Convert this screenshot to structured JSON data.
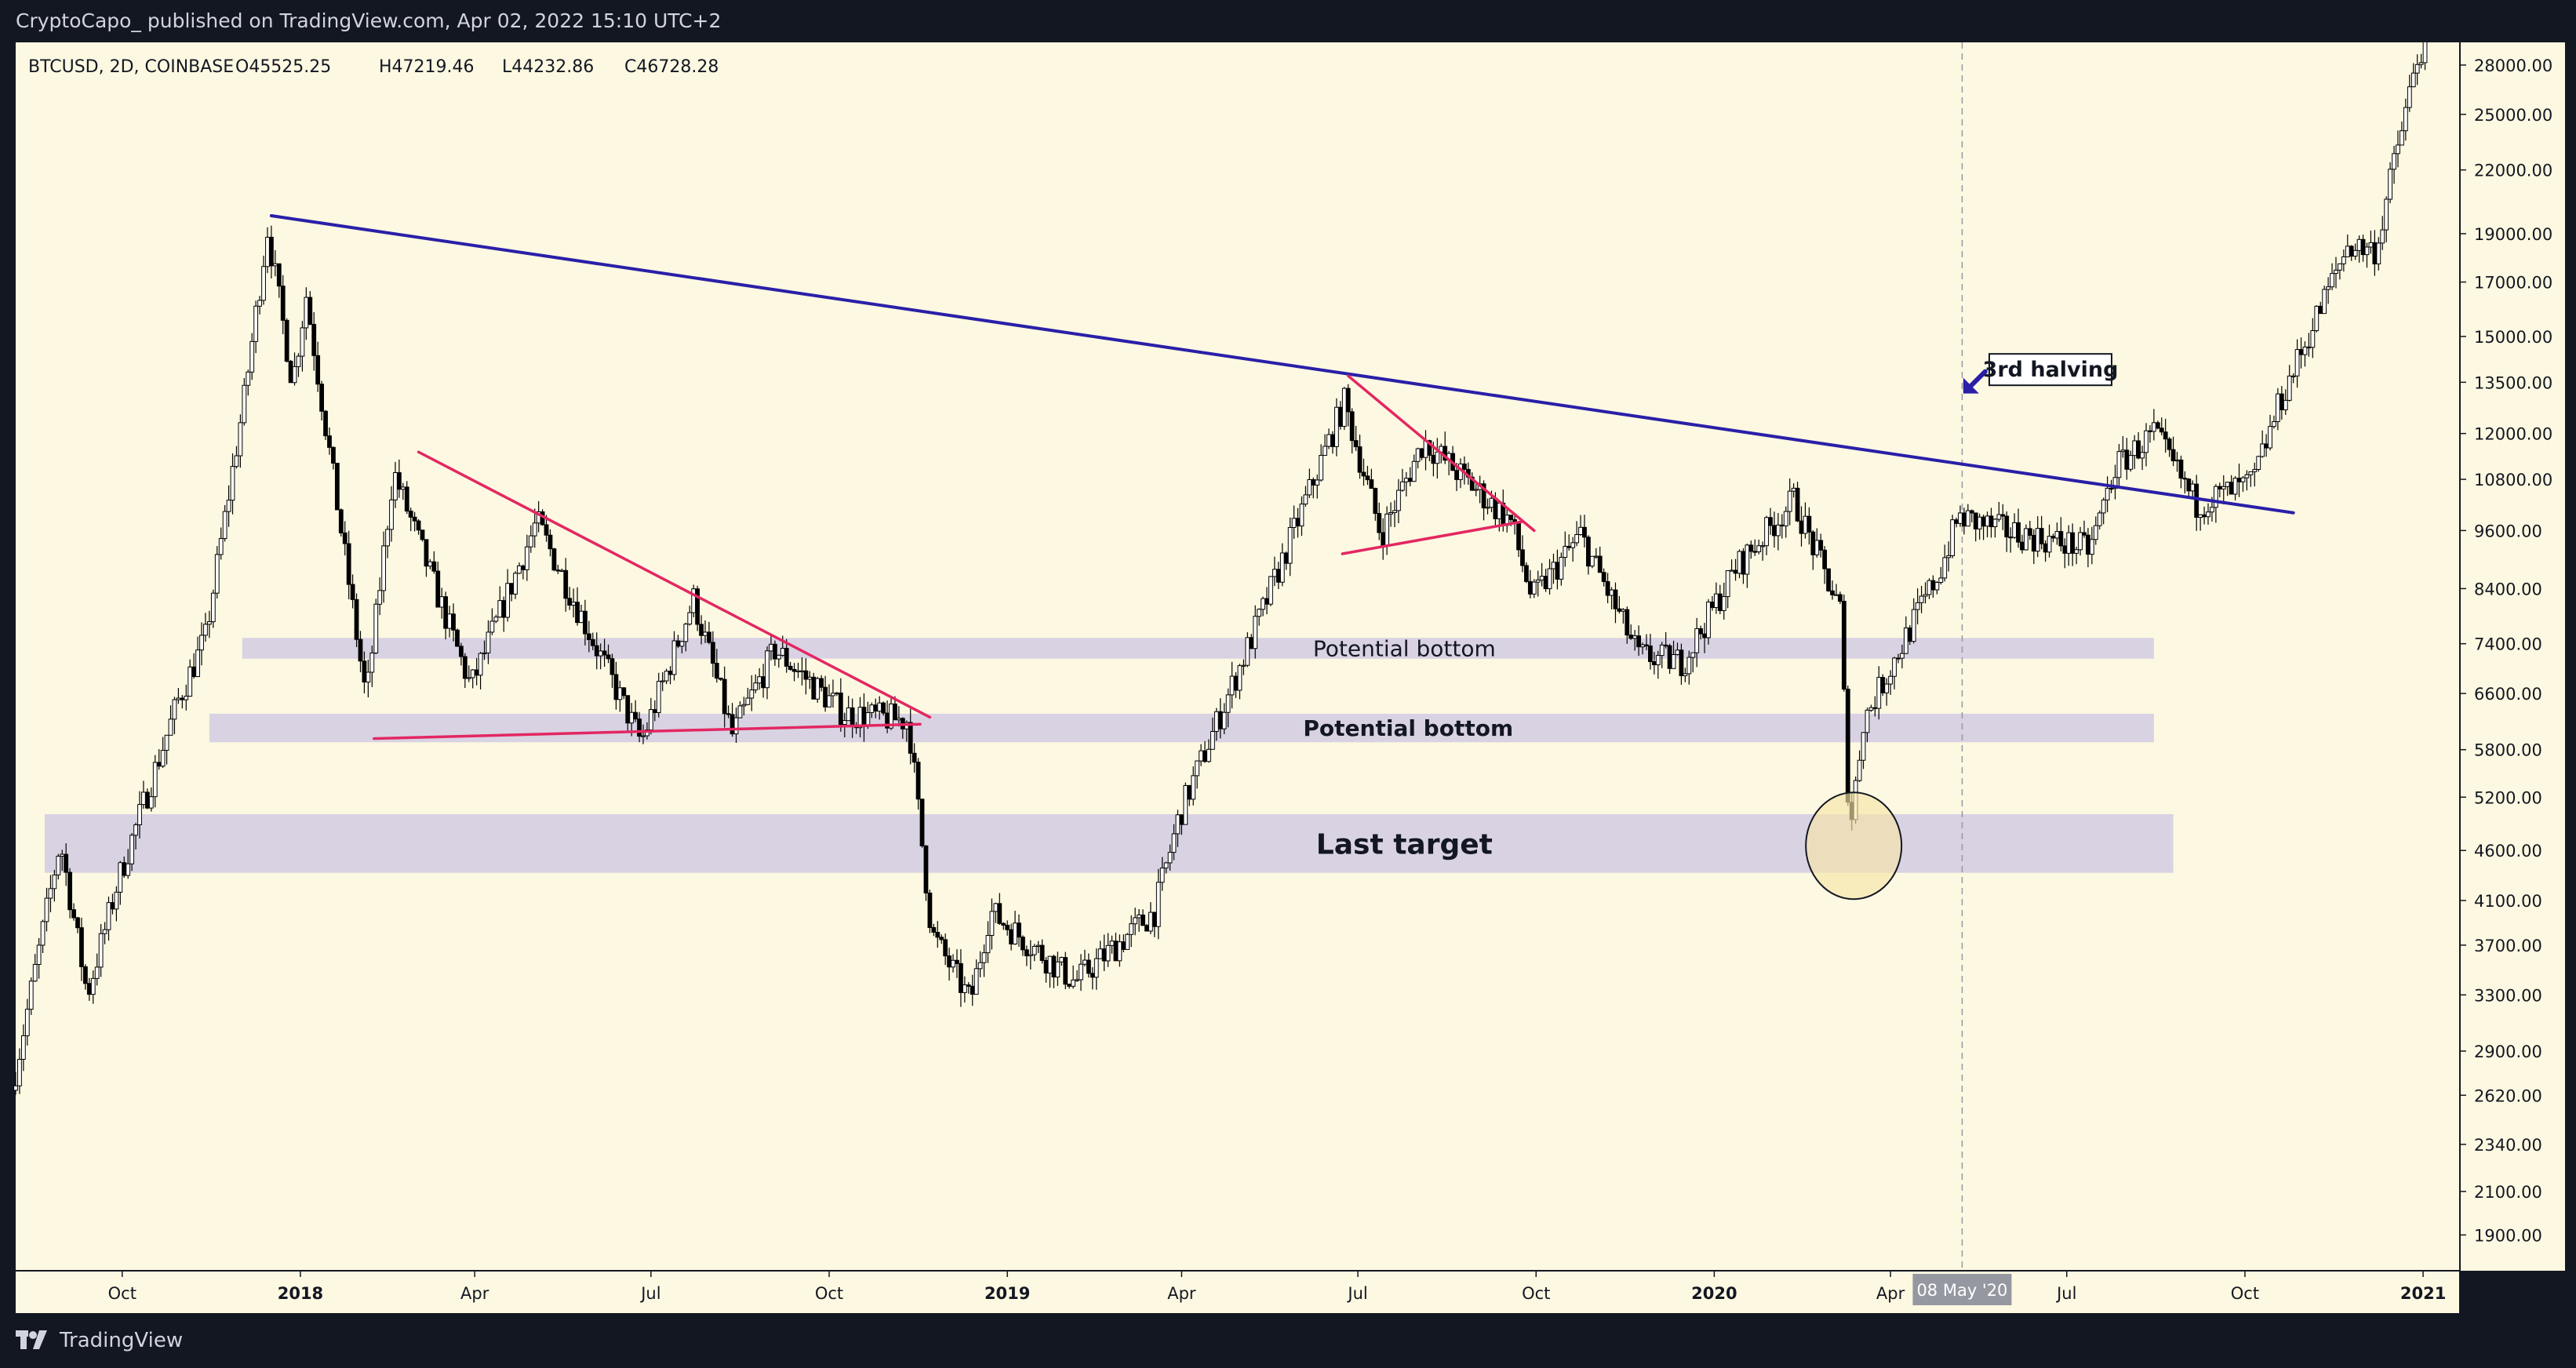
{
  "header": {
    "published_by": "CryptoCapo_ published on TradingView.com, Apr 02, 2022 15:10 UTC+2"
  },
  "footer": {
    "brand": "TradingView"
  },
  "chart_data": {
    "type": "candlestick",
    "symbol_info": "BTCUSD, 2D, COINBASE",
    "ohlc_readout": {
      "open": "O45525.25",
      "high": "H47219.46",
      "low": "L44232.86",
      "close": "C46728.28"
    },
    "y_scale": "log",
    "ylim": [
      1750,
      29500
    ],
    "xlim": [
      "2017-08-07",
      "2021-01-20"
    ],
    "y_ticks": [
      "28000.00",
      "25000.00",
      "22000.00",
      "19000.00",
      "17000.00",
      "15000.00",
      "13500.00",
      "12000.00",
      "10800.00",
      "9600.00",
      "8400.00",
      "7400.00",
      "6600.00",
      "5800.00",
      "5200.00",
      "4600.00",
      "4100.00",
      "3700.00",
      "3300.00",
      "2900.00",
      "2620.00",
      "2340.00",
      "2100.00",
      "1900.00"
    ],
    "x_ticks": [
      {
        "label": "Oct",
        "date": "2017-10-01",
        "bold": false
      },
      {
        "label": "2018",
        "date": "2018-01-01",
        "bold": true
      },
      {
        "label": "Apr",
        "date": "2018-04-01",
        "bold": false
      },
      {
        "label": "Jul",
        "date": "2018-07-01",
        "bold": false
      },
      {
        "label": "Oct",
        "date": "2018-10-01",
        "bold": false
      },
      {
        "label": "2019",
        "date": "2019-01-01",
        "bold": true
      },
      {
        "label": "Apr",
        "date": "2019-04-01",
        "bold": false
      },
      {
        "label": "Jul",
        "date": "2019-07-01",
        "bold": false
      },
      {
        "label": "Oct",
        "date": "2019-10-01",
        "bold": false
      },
      {
        "label": "2020",
        "date": "2020-01-01",
        "bold": true
      },
      {
        "label": "Apr",
        "date": "2020-04-01",
        "bold": false
      },
      {
        "label": "Jul",
        "date": "2020-07-01",
        "bold": false
      },
      {
        "label": "Oct",
        "date": "2020-10-01",
        "bold": false
      },
      {
        "label": "2021",
        "date": "2021-01-01",
        "bold": true
      }
    ],
    "crosshair": {
      "date": "2020-05-08",
      "label": "08 May '20"
    },
    "price_path": [
      [
        "2017-08-07",
        2650
      ],
      [
        "2017-09-01",
        4700
      ],
      [
        "2017-09-15",
        3300
      ],
      [
        "2017-10-01",
        4300
      ],
      [
        "2017-11-01",
        6500
      ],
      [
        "2017-11-15",
        7500
      ],
      [
        "2017-12-05",
        13000
      ],
      [
        "2017-12-17",
        19200
      ],
      [
        "2017-12-30",
        13500
      ],
      [
        "2018-01-06",
        16500
      ],
      [
        "2018-02-06",
        6500
      ],
      [
        "2018-02-20",
        11000
      ],
      [
        "2018-04-01",
        6700
      ],
      [
        "2018-05-05",
        9800
      ],
      [
        "2018-06-28",
        5900
      ],
      [
        "2018-07-25",
        8200
      ],
      [
        "2018-08-14",
        6000
      ],
      [
        "2018-09-05",
        7300
      ],
      [
        "2018-10-11",
        6300
      ],
      [
        "2018-11-13",
        6200
      ],
      [
        "2018-11-25",
        3800
      ],
      [
        "2018-12-15",
        3250
      ],
      [
        "2018-12-25",
        4000
      ],
      [
        "2019-02-07",
        3400
      ],
      [
        "2019-03-20",
        4000
      ],
      [
        "2019-04-02",
        5000
      ],
      [
        "2019-05-15",
        8000
      ],
      [
        "2019-06-26",
        12900
      ],
      [
        "2019-07-15",
        9500
      ],
      [
        "2019-08-06",
        11800
      ],
      [
        "2019-09-20",
        9800
      ],
      [
        "2019-10-01",
        8200
      ],
      [
        "2019-10-26",
        9500
      ],
      [
        "2019-11-25",
        7200
      ],
      [
        "2019-12-18",
        7100
      ],
      [
        "2020-01-14",
        8800
      ],
      [
        "2020-02-13",
        10300
      ],
      [
        "2020-03-08",
        8000
      ],
      [
        "2020-03-13",
        4800
      ],
      [
        "2020-03-20",
        6200
      ],
      [
        "2020-04-29",
        8800
      ],
      [
        "2020-05-08",
        9900
      ],
      [
        "2020-06-01",
        9600
      ],
      [
        "2020-07-15",
        9200
      ],
      [
        "2020-07-28",
        11100
      ],
      [
        "2020-08-17",
        12000
      ],
      [
        "2020-09-08",
        10200
      ],
      [
        "2020-10-07",
        10700
      ],
      [
        "2020-10-21",
        12900
      ],
      [
        "2020-11-25",
        18500
      ],
      [
        "2020-12-10",
        18300
      ],
      [
        "2020-12-16",
        21000
      ],
      [
        "2021-01-01",
        29000
      ]
    ],
    "trendlines": [
      {
        "name": "long-term-descending-resistance",
        "color": "#2a1fa8",
        "points": [
          [
            "2017-12-17",
            19800
          ],
          [
            "2020-10-26",
            10000
          ]
        ]
      },
      {
        "name": "2018-triangle-upper-trendline",
        "color": "#e32762",
        "points": [
          [
            "2018-03-03",
            11500
          ],
          [
            "2018-11-22",
            6250
          ]
        ]
      },
      {
        "name": "2018-triangle-lower-trendline",
        "color": "#e32762",
        "points": [
          [
            "2018-02-08",
            5950
          ],
          [
            "2018-11-17",
            6150
          ]
        ]
      },
      {
        "name": "2019-triangle-upper-trendline",
        "color": "#e32762",
        "points": [
          [
            "2019-06-26",
            13700
          ],
          [
            "2019-09-30",
            9600
          ]
        ]
      },
      {
        "name": "2019-triangle-lower-trendline",
        "color": "#e32762",
        "points": [
          [
            "2019-06-23",
            9100
          ],
          [
            "2019-09-24",
            9800
          ]
        ]
      }
    ],
    "zones": [
      {
        "name": "upper-potential-bottom-zone",
        "label": "Potential bottom",
        "from": "2017-12-02",
        "to": "2020-08-15",
        "low": 7150,
        "high": 7500,
        "label_bold": false,
        "label_size": 28,
        "label_date": "2019-07-25"
      },
      {
        "name": "lower-potential-bottom-zone",
        "label": "Potential bottom",
        "from": "2017-11-15",
        "to": "2020-08-15",
        "low": 5900,
        "high": 6300,
        "label_bold": true,
        "label_size": 28,
        "label_date": "2019-07-27"
      },
      {
        "name": "last-target-zone",
        "label": "Last target",
        "from": "2017-08-22",
        "to": "2020-08-25",
        "low": 4370,
        "high": 5000,
        "label_bold": true,
        "label_size": 36,
        "label_date": "2019-07-25"
      }
    ],
    "highlight_circle": {
      "date": "2020-03-13",
      "price": 4650
    },
    "annotations": [
      {
        "name": "third-halving-label",
        "text": "3rd halving",
        "date": "2020-05-22",
        "price": 13900
      },
      {
        "name": "halving-arrow-icon",
        "date": "2020-05-11",
        "price": 13300
      }
    ],
    "colors": {
      "background": "#fdf8e1",
      "candle_up": "#ffffff",
      "candle_down": "#000000",
      "axis_text": "#131722",
      "trend_blue": "#2a1fa8",
      "trend_pink": "#e32762",
      "zone_fill": "#d5cde3",
      "circle_fill": "#f6e5a7",
      "crosshair_label_bg": "#9598a1",
      "topbar_bg": "#131722"
    }
  }
}
